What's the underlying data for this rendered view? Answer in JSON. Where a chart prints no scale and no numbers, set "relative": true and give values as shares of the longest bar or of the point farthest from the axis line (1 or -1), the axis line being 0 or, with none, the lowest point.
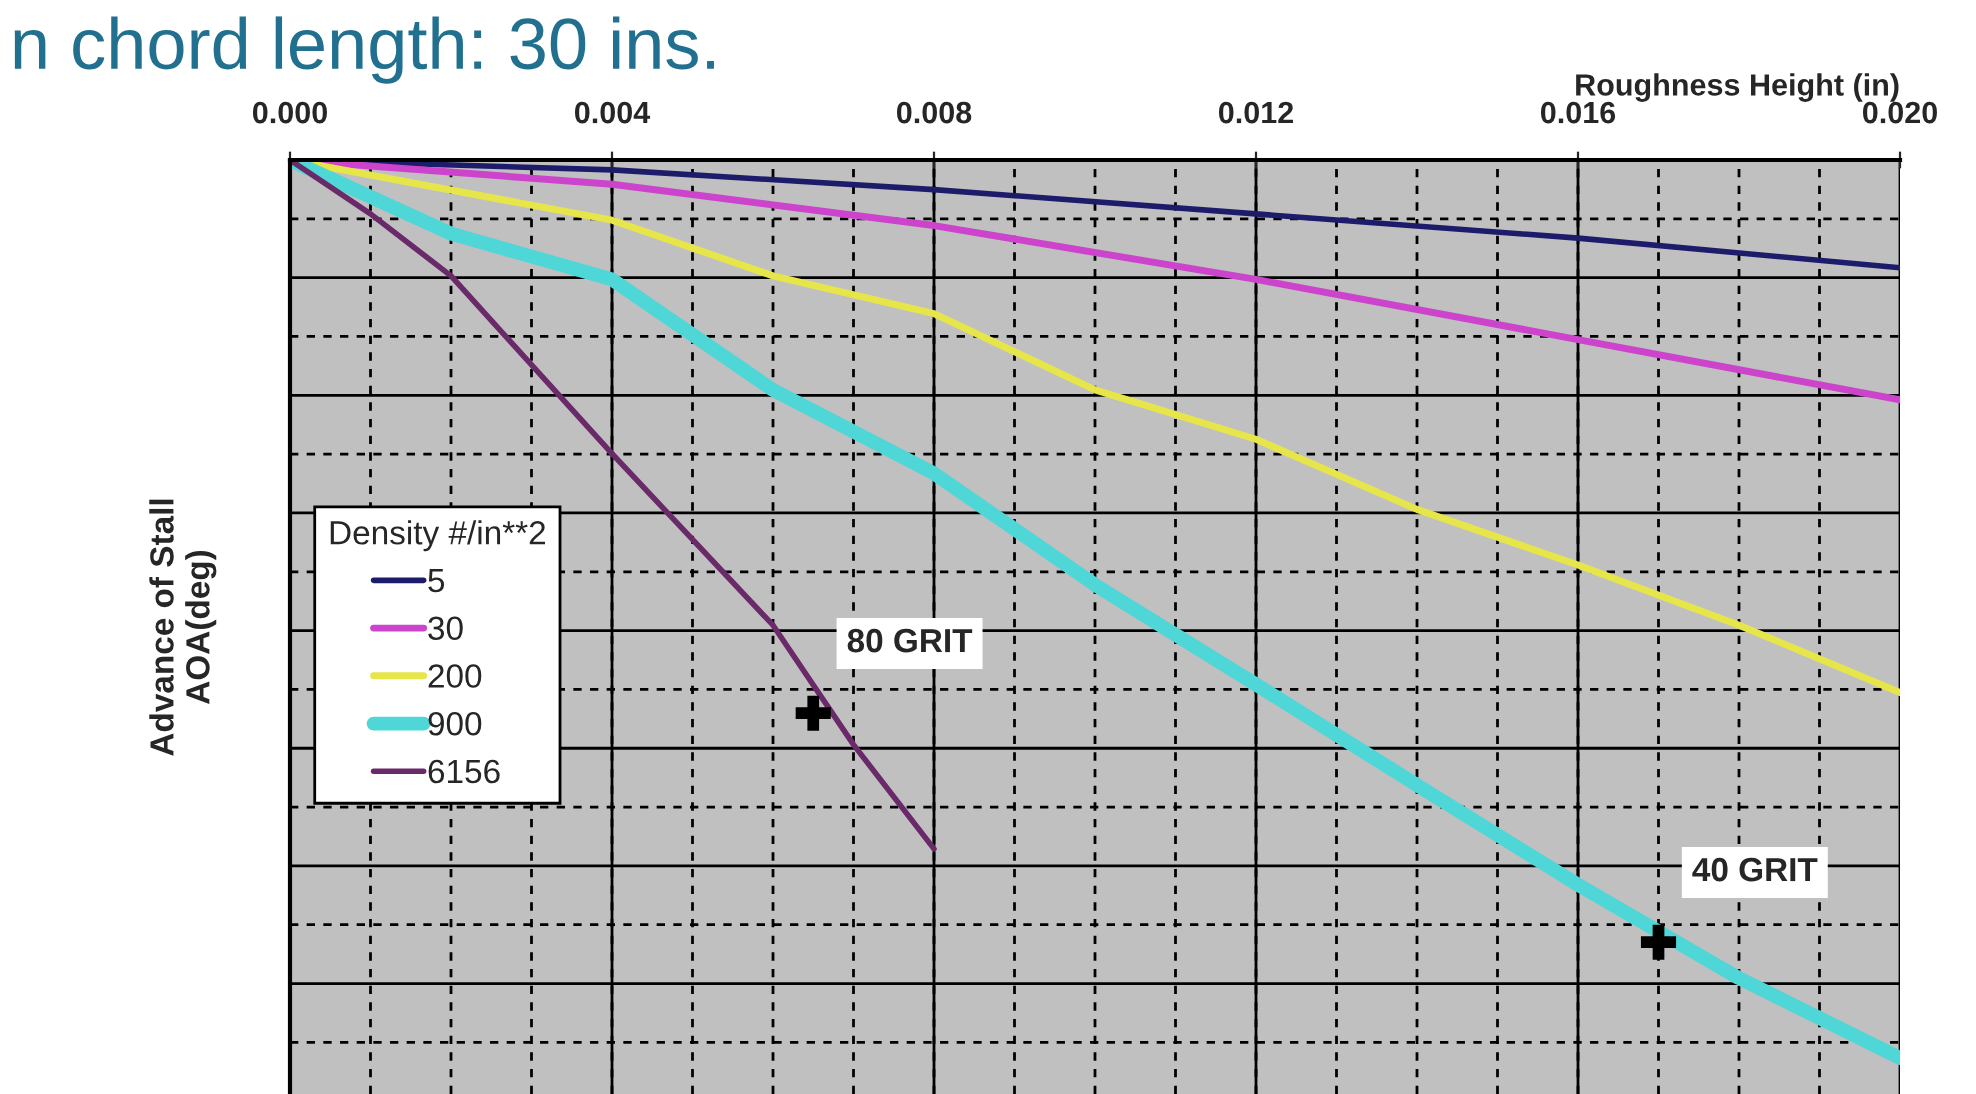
{
  "chart_data": {
    "type": "line",
    "title": "n chord length: 30 ins.",
    "xlabel": "Roughness Height (in)",
    "ylabel": "Advance of Stall\nAOA(deg)",
    "legend_title": "Density #/in**2",
    "relative": true,
    "xlim": [
      0,
      0.02
    ],
    "xticks": [
      {
        "value": 0,
        "label": "0.000"
      },
      {
        "value": 0.004,
        "label": "0.004"
      },
      {
        "value": 0.008,
        "label": "0.008"
      },
      {
        "value": 0.012,
        "label": "0.012"
      },
      {
        "value": 0.016,
        "label": "0.016"
      },
      {
        "value": 0.02,
        "label": "0.020"
      }
    ],
    "grid": true,
    "legend": "left",
    "marker": "none",
    "line_style": "solid",
    "series": [
      {
        "name": "5",
        "color": "#1c1c6b",
        "x": [
          0,
          0.004,
          0.008,
          0.012,
          0.016,
          0.02
        ],
        "values": [
          0,
          -0.011,
          -0.033,
          -0.06,
          -0.087,
          -0.12
        ]
      },
      {
        "name": "30",
        "color": "#cc44cc",
        "x": [
          0,
          0.004,
          0.008,
          0.012,
          0.016,
          0.02
        ],
        "values": [
          0,
          -0.027,
          -0.073,
          -0.133,
          -0.2,
          -0.267
        ]
      },
      {
        "name": "200",
        "color": "#e6e64a",
        "x": [
          0,
          0.004,
          0.006,
          0.008,
          0.01,
          0.012,
          0.014,
          0.016,
          0.018,
          0.02
        ],
        "values": [
          0,
          -0.067,
          -0.129,
          -0.171,
          -0.256,
          -0.311,
          -0.389,
          -0.451,
          -0.518,
          -0.593
        ]
      },
      {
        "name": "900",
        "color": "#4fd6d6",
        "x": [
          0,
          0.002,
          0.004,
          0.006,
          0.008,
          0.01,
          0.012,
          0.014,
          0.016,
          0.018,
          0.02
        ],
        "values": [
          0,
          -0.082,
          -0.133,
          -0.256,
          -0.349,
          -0.473,
          -0.584,
          -0.696,
          -0.807,
          -0.911,
          -1
        ]
      },
      {
        "name": "6156",
        "color": "#6a2a6a",
        "x": [
          0,
          0.001,
          0.002,
          0.004,
          0.006,
          0.007,
          0.008
        ],
        "values": [
          0,
          -0.06,
          -0.129,
          -0.327,
          -0.518,
          -0.651,
          -0.767
        ]
      },
      {
        "type": "scatter",
        "marker": "cross",
        "color": "#000000",
        "x": [
          0.0065,
          0.017
        ],
        "values": [
          -0.616,
          -0.871
        ]
      }
    ],
    "annotations": [
      "80 GRIT",
      "40 GRIT"
    ]
  }
}
